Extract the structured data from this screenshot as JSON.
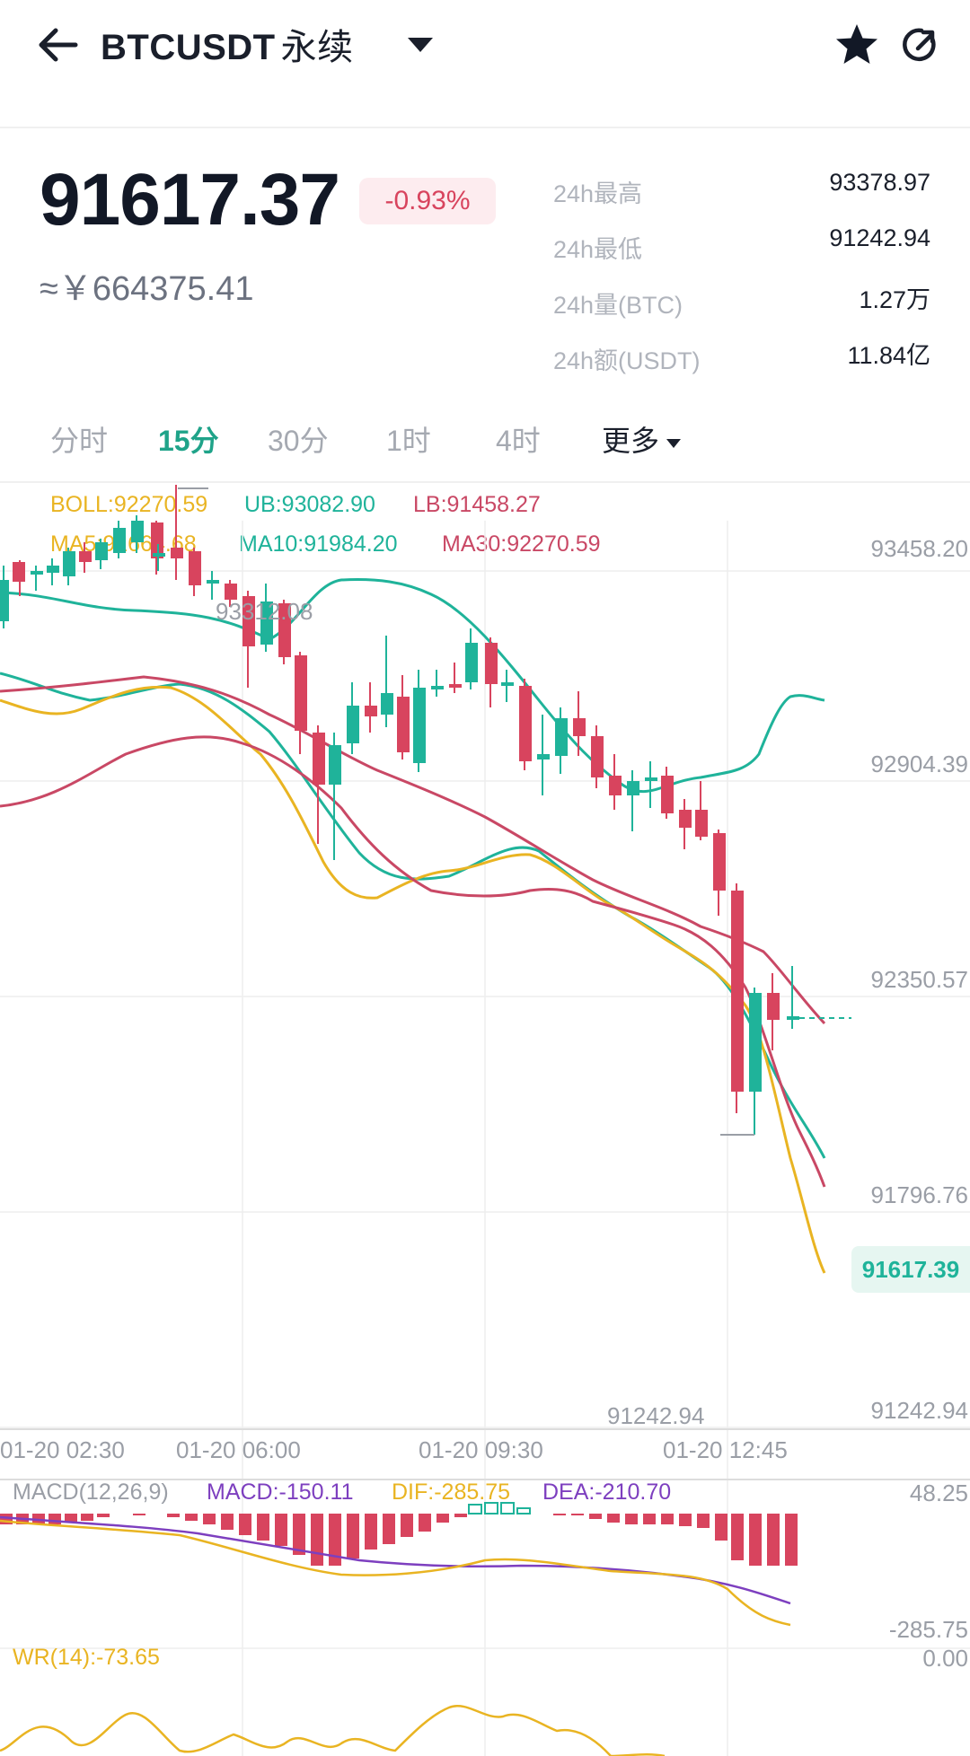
{
  "header": {
    "symbol": "BTCUSDT",
    "contract_type": "永续",
    "back_icon": "arrow-left-icon",
    "dropdown_icon": "caret-down-icon",
    "favorite_icon": "star-icon",
    "share_icon": "share-icon"
  },
  "ticker": {
    "last_price": "91617.37",
    "change_percent": "-0.93%",
    "cny_price": "≈￥664375.41",
    "change_color": "#d8445e",
    "stats": [
      {
        "label": "24h最高",
        "value": "93378.97"
      },
      {
        "label": "24h最低",
        "value": "91242.94"
      },
      {
        "label": "24h量(BTC)",
        "value": "1.27万"
      },
      {
        "label": "24h额(USDT)",
        "value": "11.84亿"
      }
    ]
  },
  "intervals": {
    "tabs": [
      "分时",
      "15分",
      "30分",
      "1时",
      "4时"
    ],
    "active": "15分",
    "more_label": "更多"
  },
  "indicators": {
    "boll": "BOLL:92270.59",
    "ub": "UB:93082.90",
    "lb": "LB:91458.27",
    "ma5": "MA5:91664.68",
    "ma10": "MA10:91984.20",
    "ma30": "MA30:92270.59",
    "macd_title": "MACD(12,26,9)",
    "macd": "MACD:-150.11",
    "dif": "DIF:-285.75",
    "dea": "DEA:-210.70",
    "wr": "WR(14):-73.65"
  },
  "chart": {
    "y_labels": [
      "93458.20",
      "92904.39",
      "92350.57",
      "91796.76",
      "91242.94"
    ],
    "x_labels": [
      "01-20 02:30",
      "01-20 06:00",
      "01-20 09:30",
      "01-20 12:45"
    ],
    "high_marker": "93312.08",
    "low_marker": "91242.94",
    "current_price_tag": "91617.39",
    "macd_y_labels": [
      "48.25",
      "-285.75"
    ],
    "wr_y_label": "0.00",
    "up_color": "#1fb39a",
    "down_color": "#d8445e"
  }
}
